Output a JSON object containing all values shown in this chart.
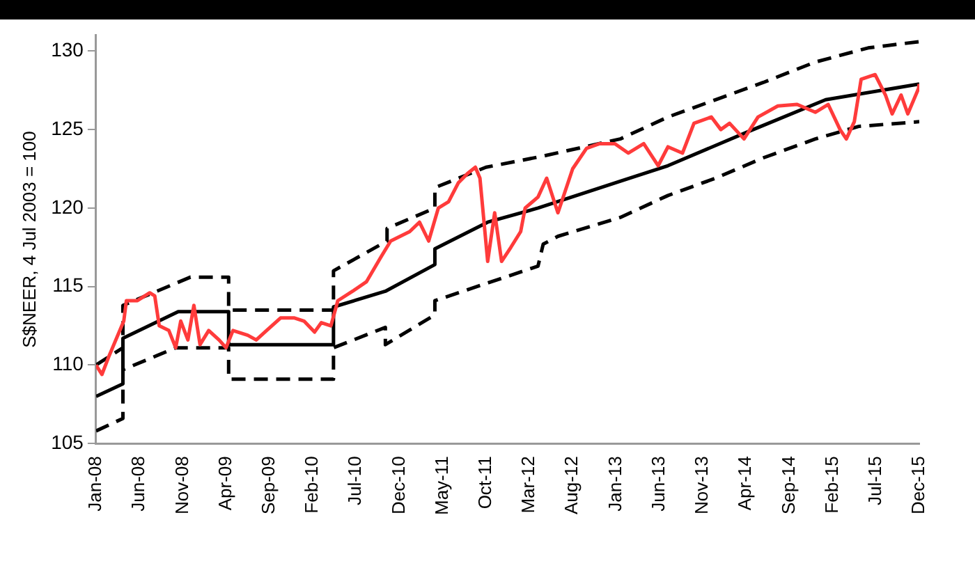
{
  "chart_data": {
    "type": "line",
    "ylabel": "S$NEER, 4 Jul 2003 = 100",
    "xlim": [
      "2008-01",
      "2015-12"
    ],
    "xticks": [
      {
        "value": "2008-01",
        "label": "Jan-08"
      },
      {
        "value": "2008-06",
        "label": "Jun-08"
      },
      {
        "value": "2008-11",
        "label": "Nov-08"
      },
      {
        "value": "2009-04",
        "label": "Apr-09"
      },
      {
        "value": "2009-09",
        "label": "Sep-09"
      },
      {
        "value": "2010-02",
        "label": "Feb-10"
      },
      {
        "value": "2010-07",
        "label": "Jul-10"
      },
      {
        "value": "2010-12",
        "label": "Dec-10"
      },
      {
        "value": "2011-05",
        "label": "May-11"
      },
      {
        "value": "2011-10",
        "label": "Oct-11"
      },
      {
        "value": "2012-03",
        "label": "Mar-12"
      },
      {
        "value": "2012-08",
        "label": "Aug-12"
      },
      {
        "value": "2013-01",
        "label": "Jan-13"
      },
      {
        "value": "2013-06",
        "label": "Jun-13"
      },
      {
        "value": "2013-11",
        "label": "Nov-13"
      },
      {
        "value": "2014-04",
        "label": "Apr-14"
      },
      {
        "value": "2014-09",
        "label": "Sep-14"
      },
      {
        "value": "2015-02",
        "label": "Feb-15"
      },
      {
        "value": "2015-07",
        "label": "Jul-15"
      },
      {
        "value": "2015-12",
        "label": "Dec-15"
      }
    ],
    "ylim": [
      105,
      131
    ],
    "yticks": [
      105,
      110,
      115,
      120,
      125,
      130
    ],
    "grid": false,
    "legend": false,
    "marker": "none",
    "series": [
      {
        "color": "#ff3b3b",
        "line_style": "solid",
        "x": [
          "2008-01-01",
          "2008-01-22",
          "2008-02-16",
          "2008-04-07",
          "2008-04-16",
          "2008-05-25",
          "2008-07-07",
          "2008-07-25",
          "2008-08-10",
          "2008-09-13",
          "2008-10-07",
          "2008-10-25",
          "2008-11-19",
          "2008-12-10",
          "2009-01-01",
          "2009-02-01",
          "2009-03-07",
          "2009-04-01",
          "2009-04-25",
          "2009-06-16",
          "2009-07-16",
          "2009-08-22",
          "2009-10-10",
          "2009-11-28",
          "2010-01-01",
          "2010-02-07",
          "2010-03-01",
          "2010-04-04",
          "2010-04-28",
          "2010-06-19",
          "2010-08-07",
          "2010-09-28",
          "2010-11-01",
          "2010-12-04",
          "2011-01-07",
          "2011-02-10",
          "2011-03-13",
          "2011-04-16",
          "2011-05-22",
          "2011-06-25",
          "2011-07-28",
          "2011-08-25",
          "2011-09-10",
          "2011-10-07",
          "2011-11-01",
          "2011-11-25",
          "2011-12-28",
          "2012-02-01",
          "2012-02-16",
          "2012-04-01",
          "2012-05-01",
          "2012-06-10",
          "2012-08-01",
          "2012-09-19",
          "2012-11-04",
          "2012-12-28",
          "2013-02-13",
          "2013-04-07",
          "2013-05-28",
          "2013-07-01",
          "2013-08-22",
          "2013-10-01",
          "2013-12-01",
          "2014-01-04",
          "2014-02-04",
          "2014-03-25",
          "2014-05-13",
          "2014-07-22",
          "2014-09-28",
          "2014-12-01",
          "2015-01-16",
          "2015-02-25",
          "2015-03-19",
          "2015-04-16",
          "2015-05-10",
          "2015-06-28",
          "2015-08-04",
          "2015-08-28",
          "2015-09-28",
          "2015-10-22",
          "2015-11-28",
          "2015-12-01"
        ],
        "values": [
          110.0,
          109.4,
          110.6,
          112.8,
          114.1,
          114.1,
          114.6,
          114.4,
          112.5,
          112.2,
          111.1,
          112.8,
          111.6,
          113.8,
          111.3,
          112.2,
          111.6,
          111.1,
          112.2,
          111.9,
          111.6,
          112.2,
          113.0,
          113.0,
          112.8,
          112.1,
          112.7,
          112.5,
          114.1,
          114.7,
          115.3,
          116.9,
          117.9,
          118.2,
          118.5,
          119.1,
          117.9,
          120.0,
          120.4,
          121.6,
          122.2,
          122.6,
          121.9,
          116.6,
          119.7,
          116.6,
          117.5,
          118.5,
          120.0,
          120.7,
          121.9,
          119.7,
          122.5,
          123.8,
          124.1,
          124.1,
          123.5,
          124.1,
          122.7,
          123.9,
          123.5,
          125.4,
          125.8,
          125.0,
          125.4,
          124.4,
          125.8,
          126.5,
          126.6,
          126.1,
          126.6,
          125.0,
          124.4,
          125.5,
          128.2,
          128.5,
          127.2,
          126.0,
          127.2,
          126.0,
          127.6,
          127.9
        ]
      },
      {
        "color": "#000000",
        "line_style": "solid",
        "x": [
          "2008-01-01",
          "2008-04-04",
          "2008-04-04",
          "2008-10-16",
          "2009-04-10",
          "2009-04-10",
          "2010-04-13",
          "2010-04-13",
          "2010-10-13",
          "2011-04-04",
          "2011-04-04",
          "2011-10-07",
          "2012-04-01",
          "2013-07-01",
          "2014-04-13",
          "2015-01-07",
          "2015-12-01"
        ],
        "values": [
          108.0,
          108.8,
          111.7,
          113.4,
          113.4,
          111.3,
          111.3,
          113.7,
          114.7,
          116.4,
          117.4,
          119.1,
          120.0,
          122.7,
          124.9,
          126.9,
          127.9
        ]
      },
      {
        "color": "#000000",
        "line_style": "dashed",
        "x": [
          "2008-01-01",
          "2008-04-04",
          "2008-04-04",
          "2008-11-28",
          "2009-04-10",
          "2009-04-10",
          "2010-04-13",
          "2010-04-13",
          "2010-10-19",
          "2010-10-19",
          "2011-04-04",
          "2011-04-04",
          "2011-10-01",
          "2012-04-16",
          "2013-01-16",
          "2013-07-01",
          "2013-12-16",
          "2014-06-01",
          "2014-12-01",
          "2015-06-04",
          "2015-12-01"
        ],
        "values": [
          110.0,
          111.1,
          113.8,
          115.6,
          115.6,
          113.5,
          113.5,
          116.0,
          117.9,
          118.7,
          120.0,
          121.3,
          122.6,
          123.3,
          124.4,
          125.8,
          126.9,
          128.0,
          129.3,
          130.2,
          130.6
        ]
      },
      {
        "color": "#000000",
        "line_style": "dashed",
        "x": [
          "2008-01-01",
          "2008-04-04",
          "2008-04-04",
          "2008-10-07",
          "2009-04-10",
          "2009-04-10",
          "2010-04-13",
          "2010-04-13",
          "2010-10-13",
          "2010-10-13",
          "2011-04-04",
          "2011-04-04",
          "2012-04-01",
          "2012-04-19",
          "2012-06-10",
          "2013-01-16",
          "2013-07-01",
          "2013-12-16",
          "2014-06-01",
          "2014-12-01",
          "2015-05-01",
          "2015-12-01"
        ],
        "values": [
          105.8,
          106.6,
          109.7,
          111.1,
          111.1,
          109.1,
          109.1,
          111.1,
          112.4,
          111.3,
          113.2,
          114.1,
          116.3,
          117.7,
          118.2,
          119.4,
          120.8,
          121.9,
          123.2,
          124.4,
          125.2,
          125.5
        ]
      }
    ]
  }
}
